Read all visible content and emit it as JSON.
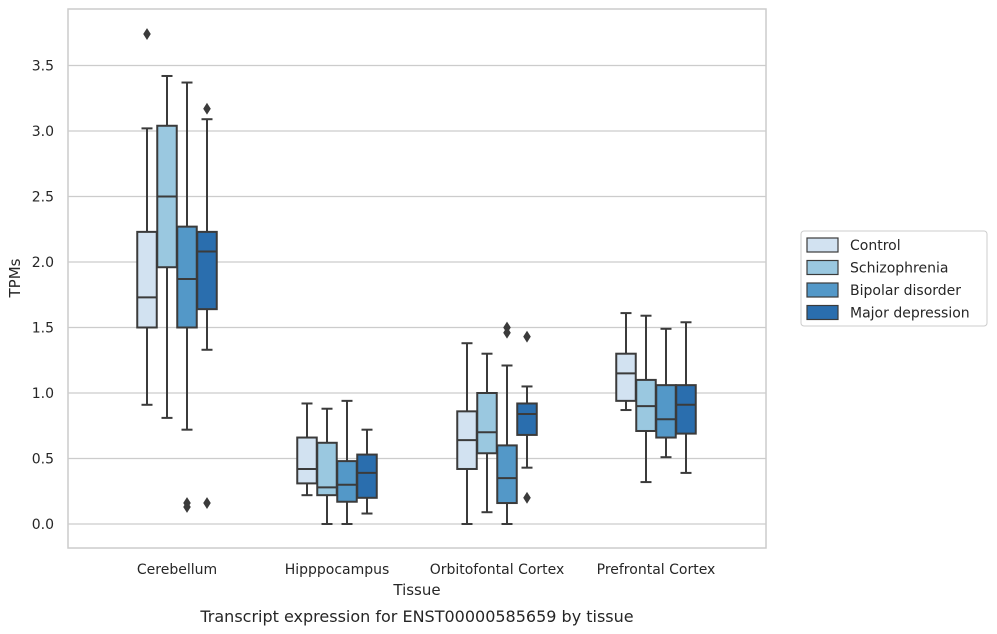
{
  "chart_data": {
    "type": "boxplot",
    "xlabel": "Tissue",
    "ylabel": "TPMs",
    "caption": "Transcript expression for ENST00000585659 by tissue",
    "ylim": [
      -0.18,
      3.96
    ],
    "yticks": [
      0.0,
      0.5,
      1.0,
      1.5,
      2.0,
      2.5,
      3.0,
      3.5
    ],
    "ytick_labels": [
      "0.0",
      "0.5",
      "1.0",
      "1.5",
      "2.0",
      "2.5",
      "3.0",
      "3.5"
    ],
    "grid": "horizontal",
    "legend_position": "outside-right",
    "categories": [
      "Cerebellum",
      "Hipppocampus",
      "Orbitofontal Cortex",
      "Prefrontal Cortex"
    ],
    "series": [
      {
        "name": "Control",
        "color": "#d2e2f1",
        "boxes": [
          {
            "whislo": 0.91,
            "q1": 1.5,
            "med": 1.73,
            "q3": 2.23,
            "whishi": 3.02,
            "fliers": [
              3.74
            ]
          },
          {
            "whislo": 0.22,
            "q1": 0.31,
            "med": 0.42,
            "q3": 0.66,
            "whishi": 0.92,
            "fliers": []
          },
          {
            "whislo": 0.0,
            "q1": 0.42,
            "med": 0.64,
            "q3": 0.86,
            "whishi": 1.38,
            "fliers": []
          },
          {
            "whislo": 0.87,
            "q1": 0.94,
            "med": 1.15,
            "q3": 1.3,
            "whishi": 1.61,
            "fliers": []
          }
        ]
      },
      {
        "name": "Schizophrenia",
        "color": "#9ac8e0",
        "boxes": [
          {
            "whislo": 0.81,
            "q1": 1.96,
            "med": 2.5,
            "q3": 3.04,
            "whishi": 3.42,
            "fliers": []
          },
          {
            "whislo": 0.0,
            "q1": 0.22,
            "med": 0.28,
            "q3": 0.62,
            "whishi": 0.88,
            "fliers": []
          },
          {
            "whislo": 0.09,
            "q1": 0.54,
            "med": 0.7,
            "q3": 1.0,
            "whishi": 1.3,
            "fliers": []
          },
          {
            "whislo": 0.32,
            "q1": 0.71,
            "med": 0.9,
            "q3": 1.1,
            "whishi": 1.59,
            "fliers": []
          }
        ]
      },
      {
        "name": "Bipolar disorder",
        "color": "#5398c8",
        "boxes": [
          {
            "whislo": 0.72,
            "q1": 1.5,
            "med": 1.87,
            "q3": 2.27,
            "whishi": 3.37,
            "fliers": [
              0.16,
              0.13
            ]
          },
          {
            "whislo": 0.0,
            "q1": 0.17,
            "med": 0.3,
            "q3": 0.48,
            "whishi": 0.94,
            "fliers": []
          },
          {
            "whislo": 0.0,
            "q1": 0.16,
            "med": 0.35,
            "q3": 0.6,
            "whishi": 1.21,
            "fliers": [
              1.5,
              1.46
            ]
          },
          {
            "whislo": 0.51,
            "q1": 0.66,
            "med": 0.8,
            "q3": 1.06,
            "whishi": 1.49,
            "fliers": []
          }
        ]
      },
      {
        "name": "Major depression",
        "color": "#2a6eae",
        "boxes": [
          {
            "whislo": 1.33,
            "q1": 1.64,
            "med": 2.08,
            "q3": 2.23,
            "whishi": 3.09,
            "fliers": [
              3.17,
              0.16
            ]
          },
          {
            "whislo": 0.08,
            "q1": 0.2,
            "med": 0.39,
            "q3": 0.53,
            "whishi": 0.72,
            "fliers": []
          },
          {
            "whislo": 0.43,
            "q1": 0.68,
            "med": 0.84,
            "q3": 0.92,
            "whishi": 1.05,
            "fliers": [
              1.43,
              0.2
            ]
          },
          {
            "whislo": 0.39,
            "q1": 0.69,
            "med": 0.91,
            "q3": 1.06,
            "whishi": 1.54,
            "fliers": []
          }
        ]
      }
    ],
    "colors": {
      "box_edge": "#3b3b3b",
      "grid": "#cccccc",
      "frame": "#cccccc",
      "text": "#262626"
    }
  }
}
